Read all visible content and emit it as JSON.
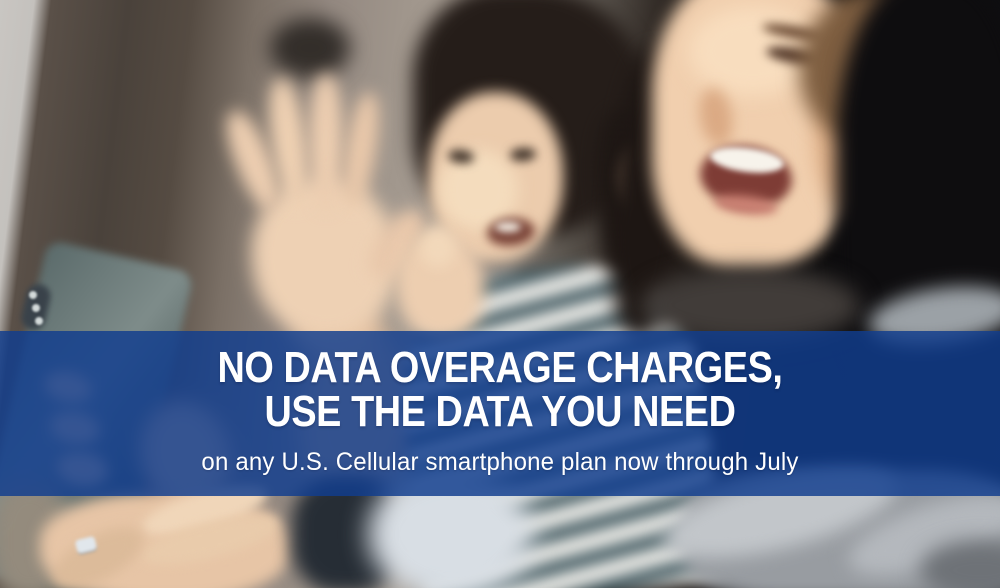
{
  "banner": {
    "headline_line1": "NO DATA OVERAGE CHARGES,",
    "headline_line2": "USE THE DATA YOU NEED",
    "subheadline": "on any U.S. Cellular smartphone plan now through July"
  },
  "colors": {
    "ribbon_blue": "#113d8e",
    "headline_text": "#ffffff"
  }
}
